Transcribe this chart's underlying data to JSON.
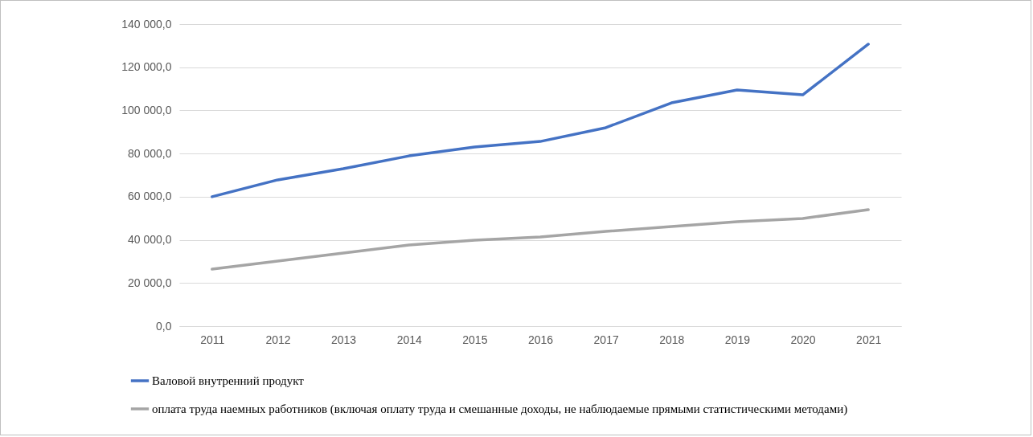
{
  "chart_data": {
    "type": "line",
    "categories": [
      "2011",
      "2012",
      "2013",
      "2014",
      "2015",
      "2016",
      "2017",
      "2018",
      "2019",
      "2020",
      "2021"
    ],
    "series": [
      {
        "name": "Валовой внутренний продукт",
        "color": "#4472c4",
        "values": [
          60000,
          67800,
          73000,
          78900,
          83000,
          85600,
          92000,
          103500,
          109500,
          107200,
          130700
        ]
      },
      {
        "name": "оплата труда наемных работников (включая оплату труда и смешанные доходы, не наблюдаемые прямыми статистическими методами)",
        "color": "#a5a5a5",
        "values": [
          26400,
          30200,
          33900,
          37600,
          39800,
          41300,
          43900,
          46200,
          48400,
          49900,
          54000
        ]
      }
    ],
    "ylim": [
      0,
      140000
    ],
    "yticks": [
      {
        "value": 0,
        "label": "0,0"
      },
      {
        "value": 20000,
        "label": "20 000,0"
      },
      {
        "value": 40000,
        "label": "40 000,0"
      },
      {
        "value": 60000,
        "label": "60 000,0"
      },
      {
        "value": 80000,
        "label": "80 000,0"
      },
      {
        "value": 100000,
        "label": "100 000,0"
      },
      {
        "value": 120000,
        "label": "120 000,0"
      },
      {
        "value": 140000,
        "label": "140 000,0"
      }
    ],
    "grid": "y",
    "legend": "bottom",
    "marker": "none",
    "line_style": "solid"
  }
}
